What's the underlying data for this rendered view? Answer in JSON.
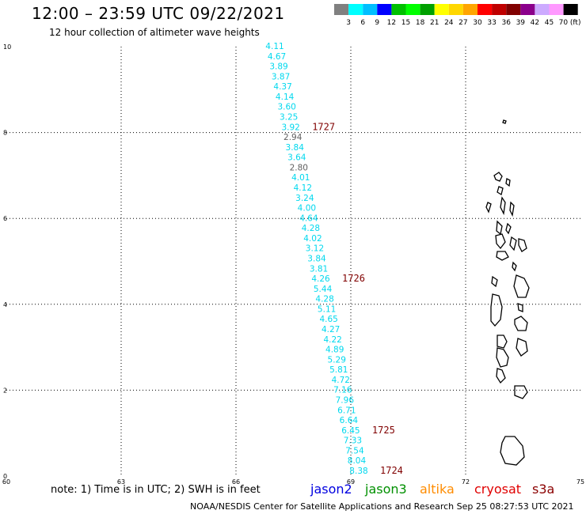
{
  "header": {
    "title": "12:00 – 23:59 UTC 09/22/2021",
    "subtitle": "12 hour collection of altimeter wave heights"
  },
  "colorbar": {
    "colors": [
      "#808080",
      "#00ffff",
      "#00bfff",
      "#0000ff",
      "#00c000",
      "#00ff00",
      "#00a000",
      "#ffff00",
      "#ffd700",
      "#ffa500",
      "#ff0000",
      "#c00000",
      "#800000",
      "#8b008b",
      "#ccaaff",
      "#ff99ff",
      "#000000"
    ],
    "labels": [
      "3",
      "6",
      "9",
      "12",
      "15",
      "18",
      "21",
      "24",
      "27",
      "30",
      "33",
      "36",
      "39",
      "42",
      "45",
      "70 (ft)"
    ]
  },
  "map": {
    "x_ticks": [
      "60",
      "63",
      "66",
      "69",
      "72",
      "75"
    ],
    "y_ticks": [
      "0",
      "2",
      "4",
      "6",
      "8",
      "10"
    ],
    "xlim": [
      60,
      75
    ],
    "ylim": [
      0,
      10
    ],
    "grid": true
  },
  "track_colors": {
    "cyan": "#00d8ee",
    "gray": "#606060",
    "maroon": "#800000"
  },
  "wave_heights": [
    {
      "v": "4.11",
      "c": "cyan"
    },
    {
      "v": "4.67",
      "c": "cyan"
    },
    {
      "v": "3.89",
      "c": "cyan"
    },
    {
      "v": "3.87",
      "c": "cyan"
    },
    {
      "v": "4.37",
      "c": "cyan"
    },
    {
      "v": "4.14",
      "c": "cyan"
    },
    {
      "v": "3.60",
      "c": "cyan"
    },
    {
      "v": "3.25",
      "c": "cyan"
    },
    {
      "v": "3.92",
      "c": "cyan"
    },
    {
      "v": "2.94",
      "c": "gray"
    },
    {
      "v": "3.84",
      "c": "cyan"
    },
    {
      "v": "3.64",
      "c": "cyan"
    },
    {
      "v": "2.80",
      "c": "gray"
    },
    {
      "v": "4.01",
      "c": "cyan"
    },
    {
      "v": "4.12",
      "c": "cyan"
    },
    {
      "v": "3.24",
      "c": "cyan"
    },
    {
      "v": "4.00",
      "c": "cyan"
    },
    {
      "v": "4.64",
      "c": "cyan"
    },
    {
      "v": "4.28",
      "c": "cyan"
    },
    {
      "v": "4.02",
      "c": "cyan"
    },
    {
      "v": "3.12",
      "c": "cyan"
    },
    {
      "v": "3.84",
      "c": "cyan"
    },
    {
      "v": "3.81",
      "c": "cyan"
    },
    {
      "v": "4.26",
      "c": "cyan"
    },
    {
      "v": "5.44",
      "c": "cyan"
    },
    {
      "v": "4.28",
      "c": "cyan"
    },
    {
      "v": "5.11",
      "c": "cyan"
    },
    {
      "v": "4.65",
      "c": "cyan"
    },
    {
      "v": "4.27",
      "c": "cyan"
    },
    {
      "v": "4.22",
      "c": "cyan"
    },
    {
      "v": "4.89",
      "c": "cyan"
    },
    {
      "v": "5.29",
      "c": "cyan"
    },
    {
      "v": "5.81",
      "c": "cyan"
    },
    {
      "v": "4.72",
      "c": "cyan"
    },
    {
      "v": "7.16",
      "c": "cyan"
    },
    {
      "v": "7.96",
      "c": "cyan"
    },
    {
      "v": "6.71",
      "c": "cyan"
    },
    {
      "v": "6.64",
      "c": "cyan"
    },
    {
      "v": "6.45",
      "c": "cyan"
    },
    {
      "v": "7.33",
      "c": "cyan"
    },
    {
      "v": "7.54",
      "c": "cyan"
    },
    {
      "v": "8.04",
      "c": "cyan"
    },
    {
      "v": "8.38",
      "c": "cyan"
    }
  ],
  "time_labels": [
    {
      "text": "1727",
      "row": 8
    },
    {
      "text": "1726",
      "row": 23
    },
    {
      "text": "1725",
      "row": 38
    },
    {
      "text": "1724",
      "row": 42
    }
  ],
  "footer": {
    "note": "note:  1) Time is in UTC;  2) SWH is in feet",
    "satellites": [
      {
        "name": "jason2",
        "color": "#0000e0"
      },
      {
        "name": "jason3",
        "color": "#009000"
      },
      {
        "name": "altika",
        "color": "#ff8c00"
      },
      {
        "name": "cryosat",
        "color": "#e00000"
      },
      {
        "name": "s3a",
        "color": "#8b0000"
      }
    ],
    "credit": "NOAA/NESDIS Center for Satellite Applications and Research     Sep 25 08:27:53 UTC 2021"
  }
}
